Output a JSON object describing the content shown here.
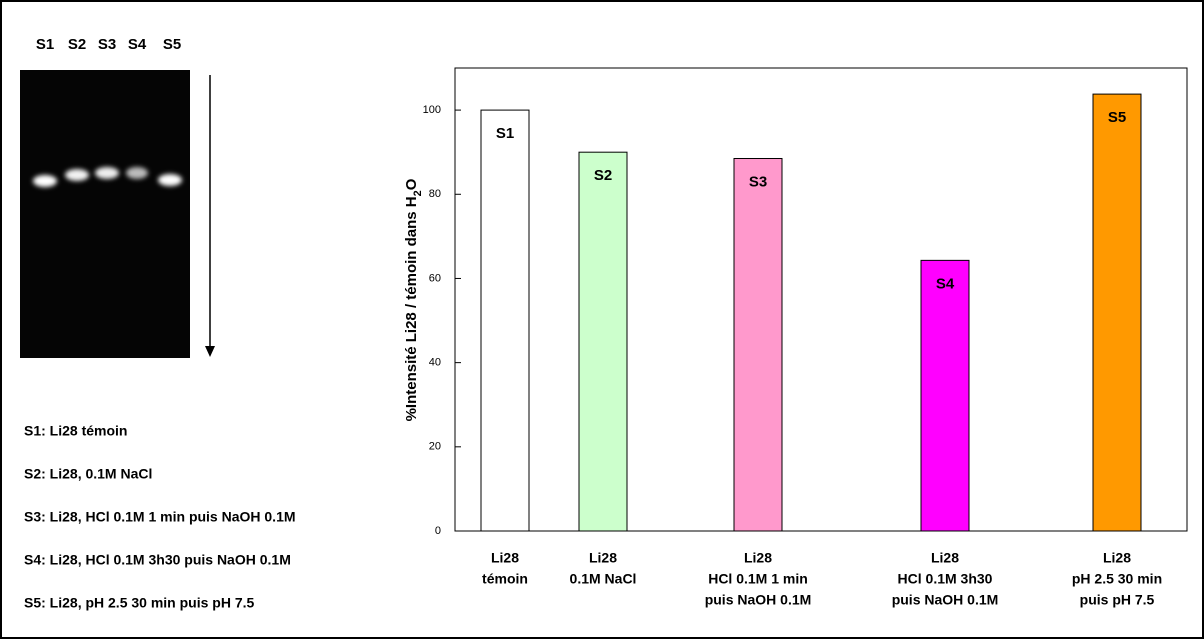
{
  "chart_data": {
    "type": "bar",
    "ylabel_parts": [
      "%Intensité Li28 / témoin dans H",
      "2",
      "O"
    ],
    "categories": [
      [
        "Li28",
        "témoin"
      ],
      [
        "Li28",
        "0.1M NaCl"
      ],
      [
        "Li28",
        "HCl 0.1M 1 min",
        "puis NaOH 0.1M"
      ],
      [
        "Li28",
        "HCl 0.1M 3h30",
        "puis NaOH 0.1M"
      ],
      [
        "Li28",
        "pH 2.5 30 min",
        "puis pH 7.5"
      ]
    ],
    "values": [
      100,
      90,
      88.5,
      64.3,
      103.8
    ],
    "bar_labels": [
      "S1",
      "S2",
      "S3",
      "S4",
      "S5"
    ],
    "colors": [
      "#ffffff",
      "#ccffcc",
      "#ff99cc",
      "#ff00ff",
      "#ff9900"
    ],
    "ylim": [
      0,
      110
    ],
    "yticks": [
      0,
      20,
      40,
      60,
      80,
      100
    ]
  },
  "gel": {
    "lane_labels": [
      "S1",
      "S2",
      "S3",
      "S4",
      "S5"
    ],
    "notes": [
      "S1: Li28 témoin",
      "S2: Li28, 0.1M NaCl",
      "S3: Li28, HCl 0.1M 1 min puis NaOH 0.1M",
      "S4: Li28, HCl 0.1M 3h30 puis NaOH 0.1M",
      "S5: Li28, pH 2.5 30 min puis pH 7.5"
    ]
  }
}
